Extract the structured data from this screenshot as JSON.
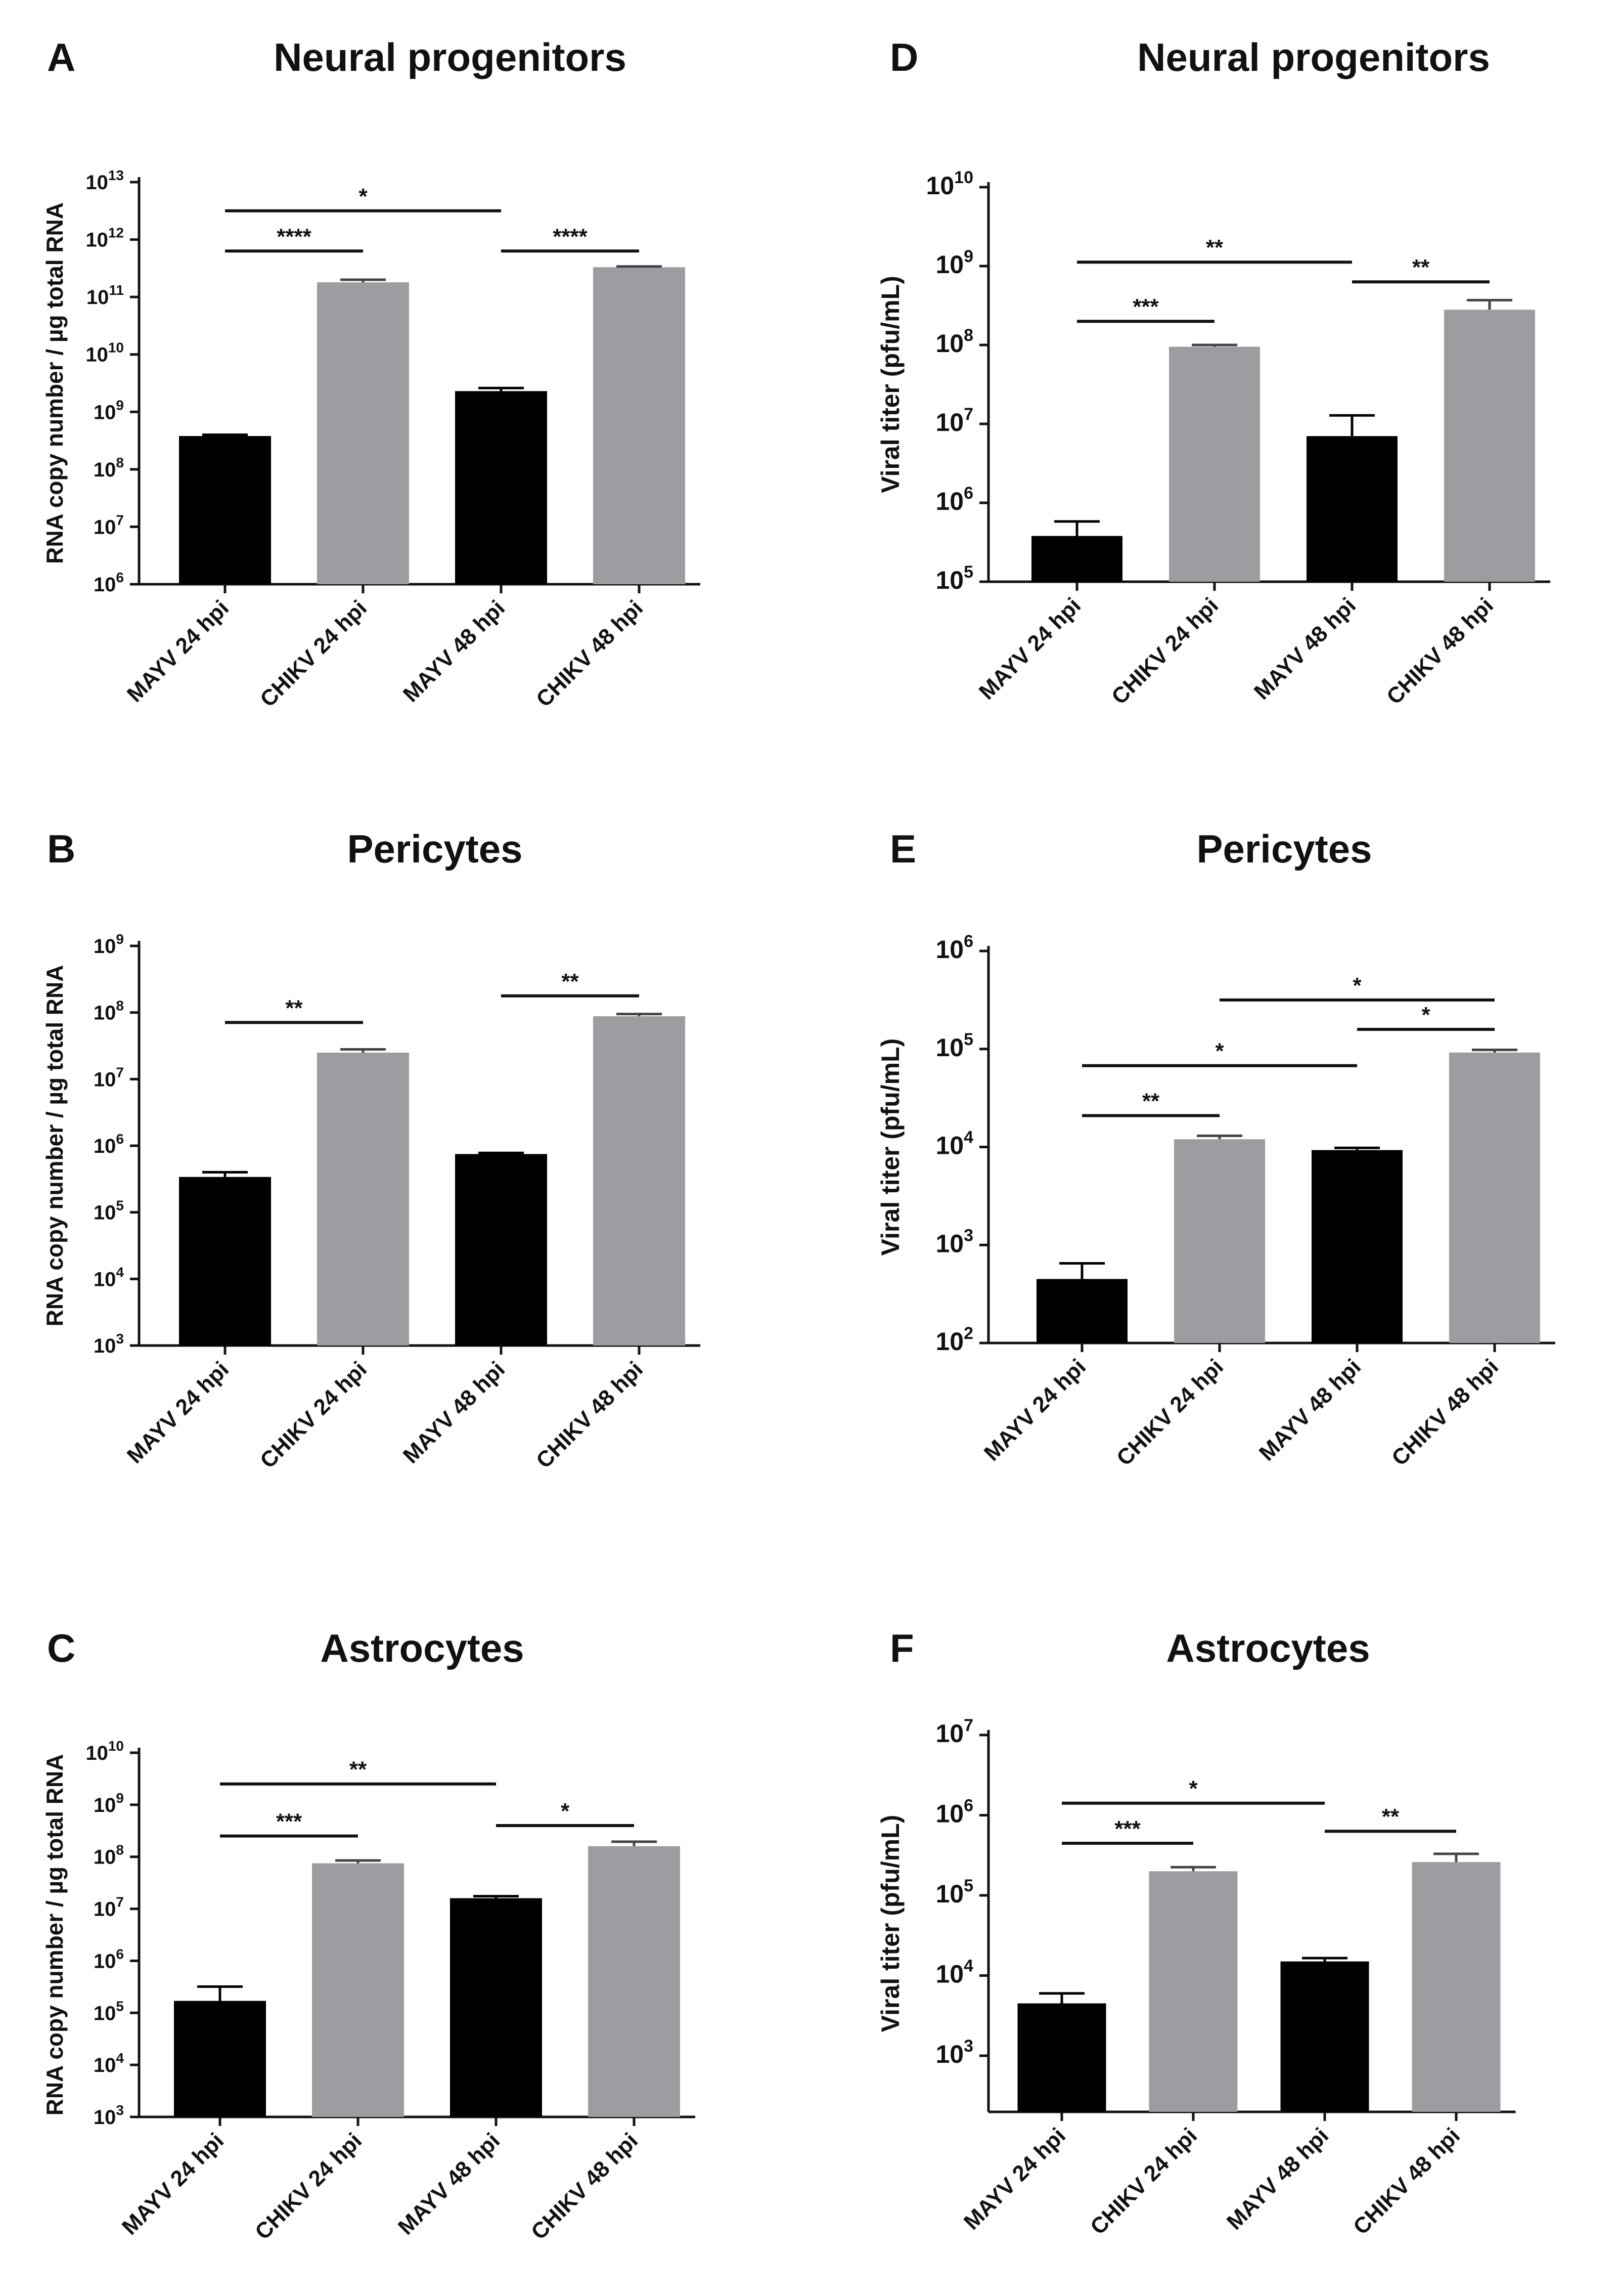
{
  "colors": {
    "mayv": "#000000",
    "chikv": "#9d9da1",
    "axis": "#111111"
  },
  "chart_data": [
    {
      "type": "bar",
      "panel": "A",
      "title": "Neural progenitors",
      "ylabel": "RNA copy number / µg total RNA",
      "yscale": "log10",
      "ylim_exp": [
        6,
        13
      ],
      "categories": [
        "MAYV 24 hpi",
        "CHIKV 24 hpi",
        "MAYV 48 hpi",
        "CHIKV 48 hpi"
      ],
      "values": [
        380000000.0,
        180000000000.0,
        2300000000.0,
        330000000000.0
      ],
      "errors_upper": [
        400000000.0,
        200000000000.0,
        2600000000.0,
        340000000000.0
      ],
      "series_by_bar": [
        "MAYV",
        "CHIKV",
        "MAYV",
        "CHIKV"
      ],
      "significance": [
        {
          "from": 0,
          "to": 2,
          "label": "*",
          "at_exp": 12.5
        },
        {
          "from": 0,
          "to": 1,
          "label": "****",
          "at_exp": 11.8
        },
        {
          "from": 2,
          "to": 3,
          "label": "****",
          "at_exp": 11.8
        }
      ]
    },
    {
      "type": "bar",
      "panel": "B",
      "title": "Pericytes",
      "ylabel": "RNA copy number / µg total RNA",
      "yscale": "log10",
      "ylim_exp": [
        3,
        9
      ],
      "categories": [
        "MAYV 24 hpi",
        "CHIKV 24 hpi",
        "MAYV 48 hpi",
        "CHIKV 48 hpi"
      ],
      "values": [
        340000.0,
        25000000.0,
        750000.0,
        88000000.0
      ],
      "errors_upper": [
        400000.0,
        28000000.0,
        780000.0,
        95000000.0
      ],
      "series_by_bar": [
        "MAYV",
        "CHIKV",
        "MAYV",
        "CHIKV"
      ],
      "significance": [
        {
          "from": 0,
          "to": 1,
          "label": "**",
          "at_exp": 7.85
        },
        {
          "from": 2,
          "to": 3,
          "label": "**",
          "at_exp": 8.25
        }
      ]
    },
    {
      "type": "bar",
      "panel": "C",
      "title": "Astrocytes",
      "ylabel": "RNA copy number / µg total RNA",
      "yscale": "log10",
      "ylim_exp": [
        3,
        10
      ],
      "categories": [
        "MAYV 24 hpi",
        "CHIKV 24 hpi",
        "MAYV 48 hpi",
        "CHIKV 48 hpi"
      ],
      "values": [
        170000.0,
        75000000.0,
        16000000.0,
        160000000.0
      ],
      "errors_upper": [
        320000.0,
        85000000.0,
        17500000.0,
        195000000.0
      ],
      "series_by_bar": [
        "MAYV",
        "CHIKV",
        "MAYV",
        "CHIKV"
      ],
      "significance": [
        {
          "from": 0,
          "to": 2,
          "label": "**",
          "at_exp": 9.4
        },
        {
          "from": 0,
          "to": 1,
          "label": "***",
          "at_exp": 8.4
        },
        {
          "from": 2,
          "to": 3,
          "label": "*",
          "at_exp": 8.6
        }
      ]
    },
    {
      "type": "bar",
      "panel": "D",
      "title": "Neural progenitors",
      "ylabel": "Viral titer (pfu/mL)",
      "yscale": "log10",
      "ylim_exp": [
        5,
        10
      ],
      "categories": [
        "MAYV 24 hpi",
        "CHIKV 24 hpi",
        "MAYV 48 hpi",
        "CHIKV 48 hpi"
      ],
      "values": [
        380000.0,
        95000000.0,
        7000000.0,
        280000000.0
      ],
      "errors_upper": [
        580000.0,
        100000000.0,
        12800000.0,
        370000000.0
      ],
      "series_by_bar": [
        "MAYV",
        "CHIKV",
        "MAYV",
        "CHIKV"
      ],
      "significance": [
        {
          "from": 0,
          "to": 2,
          "label": "**",
          "at_exp": 9.05
        },
        {
          "from": 0,
          "to": 1,
          "label": "***",
          "at_exp": 8.3
        },
        {
          "from": 2,
          "to": 3,
          "label": "**",
          "at_exp": 8.8
        }
      ]
    },
    {
      "type": "bar",
      "panel": "E",
      "title": "Pericytes",
      "ylabel": "Viral titer (pfu/mL)",
      "yscale": "log10",
      "ylim_exp": [
        2,
        6
      ],
      "categories": [
        "MAYV 24 hpi",
        "CHIKV 24 hpi",
        "MAYV 48 hpi",
        "CHIKV 48 hpi"
      ],
      "values": [
        450,
        12000,
        9300,
        92000
      ],
      "errors_upper": [
        650,
        13000,
        9800,
        98000
      ],
      "series_by_bar": [
        "MAYV",
        "CHIKV",
        "MAYV",
        "CHIKV"
      ],
      "significance": [
        {
          "from": 1,
          "to": 3,
          "label": "*",
          "at_exp": 5.5
        },
        {
          "from": 2,
          "to": 3,
          "label": "*",
          "at_exp": 5.2
        },
        {
          "from": 0,
          "to": 2,
          "label": "*",
          "at_exp": 4.83
        },
        {
          "from": 0,
          "to": 1,
          "label": "**",
          "at_exp": 4.32
        }
      ]
    },
    {
      "type": "bar",
      "panel": "F",
      "title": "Astrocytes",
      "ylabel": "Viral titer (pfu/mL)",
      "yscale": "log10",
      "ylim_exp": [
        2.3,
        7
      ],
      "ticks_exp": [
        3,
        4,
        5,
        6,
        7
      ],
      "categories": [
        "MAYV 24 hpi",
        "CHIKV 24 hpi",
        "MAYV 48 hpi",
        "CHIKV 48 hpi"
      ],
      "values": [
        4500,
        200000,
        15000,
        260000
      ],
      "errors_upper": [
        6000,
        225000,
        16500,
        330000
      ],
      "series_by_bar": [
        "MAYV",
        "CHIKV",
        "MAYV",
        "CHIKV"
      ],
      "significance": [
        {
          "from": 0,
          "to": 2,
          "label": "*",
          "at_exp": 6.15
        },
        {
          "from": 0,
          "to": 1,
          "label": "***",
          "at_exp": 5.65
        },
        {
          "from": 2,
          "to": 3,
          "label": "**",
          "at_exp": 5.8
        }
      ]
    }
  ]
}
